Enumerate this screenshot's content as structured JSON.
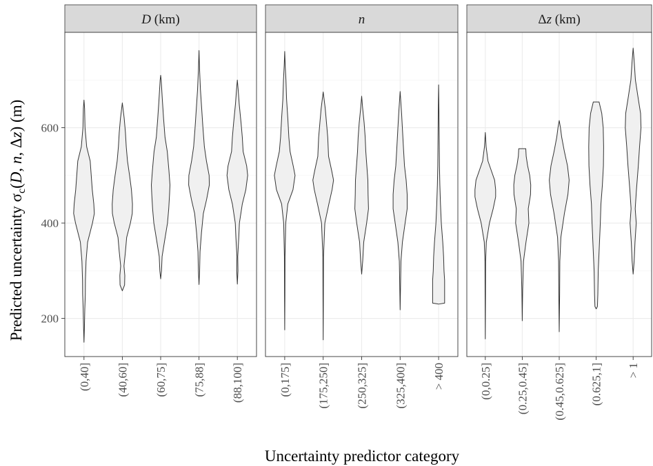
{
  "chart_data": {
    "type": "violin",
    "xlabel": "Uncertainty predictor category",
    "ylabel": {
      "pre": "Predicted uncertainty ",
      "sigma": "σ",
      "sub": "c",
      "open": "(",
      "v1": "D",
      "c1": ", ",
      "v2": "n",
      "c2": ", ",
      "delta": "Δ",
      "v3": "z",
      "close": ") (m)"
    },
    "ylim": [
      120,
      800
    ],
    "yticks": [
      200,
      400,
      600
    ],
    "grid": true,
    "fill_color": "#f0f0f0",
    "outline_color": "#333333",
    "strip_color": "#d9d9d9",
    "panels": [
      {
        "strip": {
          "italic": "D",
          "rest": " (km)"
        },
        "categories": [
          "(0,40]",
          "(40,60]",
          "(60,75]",
          "(75,88]",
          "(88,100]"
        ],
        "violins": [
          {
            "min": 150,
            "max": 658,
            "profile": [
              [
                150,
                0
              ],
              [
                180,
                0.04
              ],
              [
                220,
                0.08
              ],
              [
                250,
                0.13
              ],
              [
                280,
                0.14
              ],
              [
                320,
                0.2
              ],
              [
                360,
                0.35
              ],
              [
                400,
                0.82
              ],
              [
                420,
                1
              ],
              [
                440,
                0.95
              ],
              [
                470,
                0.8
              ],
              [
                500,
                0.7
              ],
              [
                530,
                0.6
              ],
              [
                560,
                0.26
              ],
              [
                600,
                0.1
              ],
              [
                640,
                0.06
              ],
              [
                658,
                0
              ]
            ]
          },
          {
            "min": 258,
            "max": 652,
            "profile": [
              [
                258,
                0
              ],
              [
                270,
                0.22
              ],
              [
                290,
                0.24
              ],
              [
                310,
                0.16
              ],
              [
                340,
                0.3
              ],
              [
                370,
                0.42
              ],
              [
                400,
                0.78
              ],
              [
                420,
                0.96
              ],
              [
                440,
                0.98
              ],
              [
                470,
                0.88
              ],
              [
                500,
                0.7
              ],
              [
                530,
                0.5
              ],
              [
                560,
                0.38
              ],
              [
                590,
                0.3
              ],
              [
                620,
                0.18
              ],
              [
                652,
                0
              ]
            ]
          },
          {
            "min": 283,
            "max": 710,
            "profile": [
              [
                283,
                0
              ],
              [
                300,
                0.08
              ],
              [
                330,
                0.14
              ],
              [
                360,
                0.36
              ],
              [
                400,
                0.66
              ],
              [
                430,
                0.78
              ],
              [
                460,
                0.86
              ],
              [
                480,
                0.9
              ],
              [
                510,
                0.8
              ],
              [
                550,
                0.64
              ],
              [
                580,
                0.42
              ],
              [
                620,
                0.28
              ],
              [
                660,
                0.16
              ],
              [
                700,
                0.05
              ],
              [
                710,
                0
              ]
            ]
          },
          {
            "min": 271,
            "max": 762,
            "profile": [
              [
                271,
                0
              ],
              [
                300,
                0.06
              ],
              [
                340,
                0.1
              ],
              [
                380,
                0.24
              ],
              [
                420,
                0.42
              ],
              [
                450,
                0.74
              ],
              [
                480,
                1
              ],
              [
                500,
                0.98
              ],
              [
                530,
                0.72
              ],
              [
                560,
                0.52
              ],
              [
                600,
                0.38
              ],
              [
                640,
                0.26
              ],
              [
                680,
                0.14
              ],
              [
                720,
                0.06
              ],
              [
                762,
                0
              ]
            ]
          },
          {
            "min": 272,
            "max": 700,
            "profile": [
              [
                272,
                0
              ],
              [
                300,
                0.06
              ],
              [
                330,
                0.04
              ],
              [
                370,
                0.14
              ],
              [
                400,
                0.2
              ],
              [
                440,
                0.48
              ],
              [
                470,
                0.82
              ],
              [
                500,
                1
              ],
              [
                520,
                0.9
              ],
              [
                550,
                0.56
              ],
              [
                580,
                0.48
              ],
              [
                610,
                0.36
              ],
              [
                650,
                0.18
              ],
              [
                680,
                0.08
              ],
              [
                700,
                0
              ]
            ]
          }
        ]
      },
      {
        "strip": {
          "italic": "n",
          "rest": ""
        },
        "categories": [
          "(0,175]",
          "(175,250]",
          "(250,325]",
          "(325,400]",
          "> 400"
        ],
        "violins": [
          {
            "min": 176,
            "max": 760,
            "profile": [
              [
                176,
                0
              ],
              [
                250,
                0.02
              ],
              [
                330,
                0.03
              ],
              [
                400,
                0.1
              ],
              [
                440,
                0.3
              ],
              [
                470,
                0.8
              ],
              [
                500,
                1
              ],
              [
                520,
                0.82
              ],
              [
                550,
                0.52
              ],
              [
                580,
                0.4
              ],
              [
                620,
                0.3
              ],
              [
                660,
                0.18
              ],
              [
                700,
                0.12
              ],
              [
                730,
                0.05
              ],
              [
                760,
                0
              ]
            ]
          },
          {
            "min": 155,
            "max": 675,
            "profile": [
              [
                155,
                0
              ],
              [
                250,
                0.02
              ],
              [
                330,
                0.03
              ],
              [
                400,
                0.16
              ],
              [
                440,
                0.55
              ],
              [
                470,
                0.86
              ],
              [
                490,
                1
              ],
              [
                510,
                0.82
              ],
              [
                540,
                0.52
              ],
              [
                580,
                0.44
              ],
              [
                610,
                0.32
              ],
              [
                640,
                0.2
              ],
              [
                675,
                0
              ]
            ]
          },
          {
            "min": 293,
            "max": 666,
            "profile": [
              [
                293,
                0
              ],
              [
                320,
                0.1
              ],
              [
                360,
                0.2
              ],
              [
                400,
                0.48
              ],
              [
                430,
                0.66
              ],
              [
                460,
                0.62
              ],
              [
                490,
                0.6
              ],
              [
                520,
                0.5
              ],
              [
                550,
                0.4
              ],
              [
                580,
                0.34
              ],
              [
                610,
                0.24
              ],
              [
                640,
                0.1
              ],
              [
                666,
                0
              ]
            ]
          },
          {
            "min": 218,
            "max": 676,
            "profile": [
              [
                218,
                0
              ],
              [
                270,
                0.04
              ],
              [
                320,
                0.08
              ],
              [
                360,
                0.22
              ],
              [
                400,
                0.48
              ],
              [
                430,
                0.68
              ],
              [
                460,
                0.68
              ],
              [
                490,
                0.58
              ],
              [
                520,
                0.42
              ],
              [
                550,
                0.34
              ],
              [
                590,
                0.24
              ],
              [
                630,
                0.14
              ],
              [
                676,
                0
              ]
            ]
          },
          {
            "min": 230,
            "max": 690,
            "profile": [
              [
                230,
                0
              ],
              [
                232,
                0.58
              ],
              [
                250,
                0.58
              ],
              [
                280,
                0.58
              ],
              [
                300,
                0.52
              ],
              [
                330,
                0.48
              ],
              [
                360,
                0.4
              ],
              [
                400,
                0.26
              ],
              [
                440,
                0.18
              ],
              [
                480,
                0.12
              ],
              [
                520,
                0.08
              ],
              [
                570,
                0.06
              ],
              [
                620,
                0.04
              ],
              [
                660,
                0.02
              ],
              [
                690,
                0
              ]
            ]
          }
        ]
      },
      {
        "strip": {
          "italic": "z",
          "pre": "Δ",
          "rest": " (km)"
        },
        "categories": [
          "(0,0.25]",
          "(0.25,0.45]",
          "(0.45,0.625]",
          "(0.625,1]",
          "> 1"
        ],
        "violins": [
          {
            "min": 157,
            "max": 590,
            "profile": [
              [
                157,
                0
              ],
              [
                250,
                0.02
              ],
              [
                320,
                0.03
              ],
              [
                360,
                0.1
              ],
              [
                400,
                0.4
              ],
              [
                430,
                0.76
              ],
              [
                455,
                1
              ],
              [
                470,
                1
              ],
              [
                490,
                0.9
              ],
              [
                510,
                0.58
              ],
              [
                530,
                0.26
              ],
              [
                560,
                0.08
              ],
              [
                590,
                0
              ]
            ]
          },
          {
            "min": 195,
            "max": 556,
            "profile": [
              [
                195,
                0
              ],
              [
                260,
                0.04
              ],
              [
                320,
                0.12
              ],
              [
                360,
                0.36
              ],
              [
                400,
                0.64
              ],
              [
                430,
                0.58
              ],
              [
                460,
                0.8
              ],
              [
                480,
                0.82
              ],
              [
                500,
                0.72
              ],
              [
                520,
                0.52
              ],
              [
                540,
                0.38
              ],
              [
                556,
                0.34
              ]
            ]
          },
          {
            "min": 172,
            "max": 615,
            "profile": [
              [
                172,
                0
              ],
              [
                250,
                0.04
              ],
              [
                320,
                0.06
              ],
              [
                370,
                0.16
              ],
              [
                420,
                0.5
              ],
              [
                460,
                0.84
              ],
              [
                490,
                0.96
              ],
              [
                520,
                0.8
              ],
              [
                550,
                0.5
              ],
              [
                580,
                0.24
              ],
              [
                600,
                0.12
              ],
              [
                615,
                0
              ]
            ]
          },
          {
            "min": 220,
            "max": 654,
            "profile": [
              [
                220,
                0
              ],
              [
                225,
                0.12
              ],
              [
                250,
                0.16
              ],
              [
                300,
                0.2
              ],
              [
                350,
                0.3
              ],
              [
                400,
                0.4
              ],
              [
                440,
                0.46
              ],
              [
                480,
                0.6
              ],
              [
                520,
                0.7
              ],
              [
                560,
                0.72
              ],
              [
                600,
                0.68
              ],
              [
                630,
                0.54
              ],
              [
                654,
                0.28
              ]
            ]
          },
          {
            "min": 293,
            "max": 767,
            "profile": [
              [
                293,
                0
              ],
              [
                320,
                0.1
              ],
              [
                360,
                0.18
              ],
              [
                400,
                0.3
              ],
              [
                430,
                0.2
              ],
              [
                470,
                0.32
              ],
              [
                520,
                0.5
              ],
              [
                560,
                0.62
              ],
              [
                600,
                0.76
              ],
              [
                630,
                0.72
              ],
              [
                660,
                0.5
              ],
              [
                700,
                0.22
              ],
              [
                740,
                0.1
              ],
              [
                767,
                0
              ]
            ]
          }
        ]
      }
    ]
  }
}
